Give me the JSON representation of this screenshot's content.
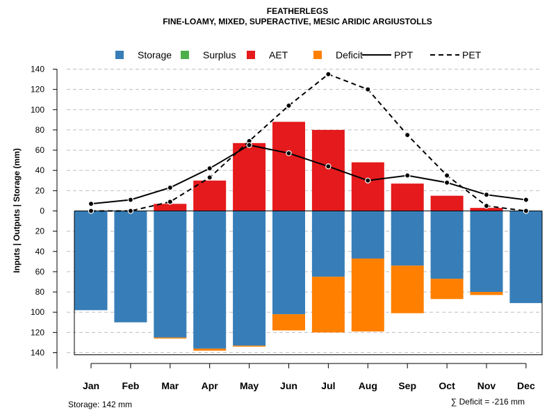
{
  "chart_data": {
    "type": "bar",
    "title": "FEATHERLEGS",
    "subtitle": "FINE-LOAMY, MIXED, SUPERACTIVE, MESIC ARIDIC ARGIUSTOLLS",
    "ylabel": "Inputs | Outputs | Storage    (mm)",
    "ylim": [
      -140,
      140
    ],
    "yticks": [
      140,
      120,
      100,
      80,
      60,
      40,
      20,
      0,
      -20,
      -40,
      -60,
      -80,
      -100,
      -120,
      -140
    ],
    "ytick_labels": [
      "140",
      "120",
      "100",
      "80",
      "60",
      "40",
      "20",
      "0",
      "20",
      "40",
      "60",
      "80",
      "100",
      "120",
      "140"
    ],
    "categories": [
      "Jan",
      "Feb",
      "Mar",
      "Apr",
      "May",
      "Jun",
      "Jul",
      "Aug",
      "Sep",
      "Oct",
      "Nov",
      "Dec"
    ],
    "legend": [
      {
        "name": "Storage",
        "color": "#377EB8",
        "kind": "box"
      },
      {
        "name": "Surplus",
        "color": "#4DAF4A",
        "kind": "box"
      },
      {
        "name": "AET",
        "color": "#E41A1C",
        "kind": "box"
      },
      {
        "name": "Deficit",
        "color": "#FF7F00",
        "kind": "box"
      },
      {
        "name": "PPT",
        "color": "#000000",
        "kind": "line"
      },
      {
        "name": "PET",
        "color": "#000000",
        "kind": "dashed"
      }
    ],
    "series": [
      {
        "name": "AET",
        "color": "#E41A1C",
        "values": [
          0,
          0,
          7,
          30,
          67,
          88,
          80,
          48,
          27,
          15,
          3,
          0
        ]
      },
      {
        "name": "Storage",
        "color": "#377EB8",
        "values": [
          98,
          110,
          125,
          136,
          133,
          102,
          65,
          47,
          54,
          67,
          80,
          91
        ]
      },
      {
        "name": "Deficit",
        "color": "#FF7F00",
        "values": [
          0,
          0,
          1,
          2,
          1,
          16,
          55,
          72,
          47,
          20,
          3,
          0
        ]
      },
      {
        "name": "Surplus",
        "color": "#4DAF4A",
        "values": [
          0,
          0,
          0,
          0,
          0,
          0,
          0,
          0,
          0,
          0,
          0,
          0
        ]
      },
      {
        "name": "PPT",
        "color": "#000000",
        "values": [
          7,
          11,
          23,
          42,
          65,
          57,
          44,
          30,
          35,
          28,
          16,
          11
        ]
      },
      {
        "name": "PET",
        "color": "#000000",
        "values": [
          0,
          0,
          9,
          33,
          69,
          104,
          135,
          120,
          75,
          35,
          5,
          0
        ]
      }
    ],
    "storage_note": "Storage: 142 mm",
    "deficit_note": "∑ Deficit = -216 mm"
  }
}
